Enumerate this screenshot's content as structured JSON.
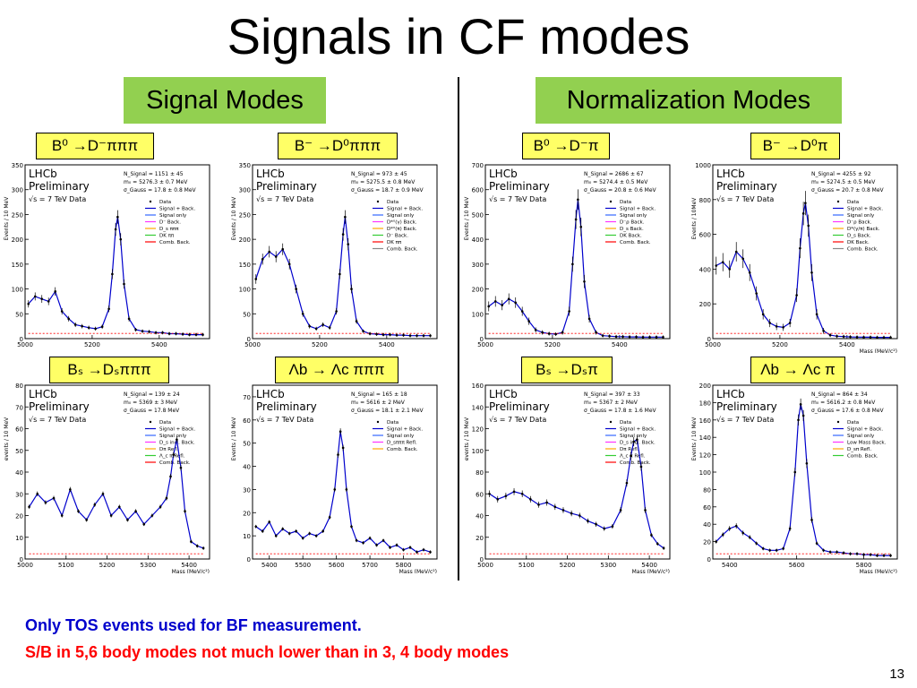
{
  "slide": {
    "title": "Signals in CF modes",
    "signal_modes_label": "Signal Modes",
    "normalization_modes_label": "Normalization Modes",
    "note_1": "Only TOS events used for BF measurement.",
    "note_2": "S/B in 5,6 body modes not much lower than in 3, 4 body modes",
    "page_number": "13"
  },
  "colors": {
    "label_green": "#92d050",
    "label_yellow": "#ffff66",
    "note_blue": "#0000cc",
    "note_red": "#ff0000"
  },
  "chart_data": [
    {
      "type": "line",
      "mode_label": "B⁰ →D⁻πππ",
      "info": [
        "LHCb",
        "Preliminary",
        "√s = 7 TeV Data"
      ],
      "ylabel": "Events / 10 MeV",
      "xlabel": "",
      "ylim": [
        0,
        350
      ],
      "xlim": [
        5000,
        5550
      ],
      "yticks": [
        0,
        50,
        100,
        150,
        200,
        250,
        300,
        350
      ],
      "xticks": [
        5000,
        5200,
        5400
      ],
      "stats": [
        "N_Signal = 1151 ± 45",
        "m₀ = 5276.3 ± 0.7 MeV",
        "σ_Gauss = 17.8 ± 0.8 MeV"
      ],
      "legend": [
        "Data",
        "Signal + Back.",
        "Signal only",
        "D⁻ Back.",
        "D_s πππ",
        "DK ππ",
        "Comb. Back."
      ],
      "x": [
        5010,
        5030,
        5050,
        5070,
        5090,
        5110,
        5130,
        5150,
        5170,
        5190,
        5210,
        5230,
        5250,
        5260,
        5270,
        5276,
        5285,
        5295,
        5310,
        5330,
        5350,
        5370,
        5390,
        5410,
        5430,
        5450,
        5470,
        5490,
        5510,
        5530
      ],
      "y": [
        70,
        85,
        80,
        75,
        95,
        55,
        40,
        28,
        25,
        22,
        20,
        24,
        60,
        130,
        220,
        245,
        200,
        110,
        40,
        18,
        15,
        14,
        12,
        12,
        10,
        10,
        9,
        8,
        8,
        8
      ]
    },
    {
      "type": "line",
      "mode_label": "B⁻ →D⁰πππ",
      "info": [
        "LHCb",
        "Preliminary",
        "√s = 7 TeV Data"
      ],
      "ylabel": "Events / 10 MeV",
      "xlabel": "",
      "ylim": [
        0,
        350
      ],
      "xlim": [
        5000,
        5550
      ],
      "yticks": [
        0,
        50,
        100,
        150,
        200,
        250,
        300,
        350
      ],
      "xticks": [
        5000,
        5200,
        5400
      ],
      "stats": [
        "N_Signal = 973 ± 45",
        "m₀ = 5275.5 ± 0.8 MeV",
        "σ_Gauss = 18.7 ± 0.9 MeV"
      ],
      "legend": [
        "Data",
        "Signal + Back.",
        "Signal only",
        "D*⁰(γ) Back.",
        "D*⁰(π) Back.",
        "D⁻ Back.",
        "DK ππ",
        "Comb. Back."
      ],
      "x": [
        5010,
        5030,
        5050,
        5070,
        5090,
        5110,
        5130,
        5150,
        5170,
        5190,
        5210,
        5230,
        5250,
        5260,
        5270,
        5276,
        5285,
        5295,
        5310,
        5330,
        5350,
        5370,
        5390,
        5410,
        5430,
        5450,
        5470,
        5490,
        5510,
        5530
      ],
      "y": [
        120,
        160,
        175,
        165,
        180,
        150,
        100,
        50,
        25,
        20,
        28,
        22,
        55,
        130,
        210,
        245,
        190,
        100,
        35,
        15,
        10,
        9,
        8,
        8,
        7,
        7,
        6,
        6,
        6,
        6
      ]
    },
    {
      "type": "line",
      "mode_label": "B⁰ →D⁻π",
      "info": [
        "LHCb",
        "Preliminary",
        "√s = 7 TeV Data"
      ],
      "ylabel": "Events / 10 MeV",
      "xlabel": "",
      "ylim": [
        0,
        700
      ],
      "xlim": [
        5000,
        5550
      ],
      "yticks": [
        0,
        100,
        200,
        300,
        400,
        500,
        600,
        700
      ],
      "xticks": [
        5000,
        5200,
        5400
      ],
      "stats": [
        "N_Signal = 2686 ± 67",
        "m₀ = 5274.4 ± 0.5 MeV",
        "σ_Gauss = 20.8 ± 0.6 MeV"
      ],
      "legend": [
        "Data",
        "Signal + Back.",
        "Signal only",
        "D⁻ρ Back.",
        "D_s Back.",
        "DK Back.",
        "Comb. Back."
      ],
      "x": [
        5010,
        5030,
        5050,
        5070,
        5090,
        5110,
        5130,
        5150,
        5170,
        5190,
        5210,
        5230,
        5250,
        5260,
        5270,
        5276,
        5285,
        5295,
        5310,
        5330,
        5350,
        5370,
        5390,
        5410,
        5430,
        5450,
        5470,
        5490,
        5510,
        5530
      ],
      "y": [
        130,
        150,
        135,
        160,
        145,
        110,
        70,
        35,
        25,
        20,
        18,
        25,
        110,
        300,
        480,
        560,
        450,
        230,
        80,
        25,
        12,
        10,
        8,
        8,
        7,
        7,
        6,
        6,
        6,
        6
      ]
    },
    {
      "type": "line",
      "mode_label": "B⁻ →D⁰π",
      "info": [
        "LHCb",
        "Preliminary",
        "√s = 7 TeV Data"
      ],
      "ylabel": "Events / 10MeV",
      "xlabel": "Mass (MeV/c²)",
      "ylim": [
        0,
        1000
      ],
      "xlim": [
        5000,
        5550
      ],
      "yticks": [
        0,
        200,
        400,
        600,
        800,
        1000
      ],
      "xticks": [
        5000,
        5200,
        5400
      ],
      "stats": [
        "N_Signal = 4255 ± 92",
        "m₀ = 5274.5 ± 0.5 MeV",
        "σ_Gauss = 20.7 ± 0.8 MeV"
      ],
      "legend": [
        "Data",
        "Signal + Back.",
        "Signal only",
        "D⁻ρ Back.",
        "D*(γ/π) Back.",
        "D_s Back.",
        "DK Back.",
        "Comb. Back."
      ],
      "x": [
        5010,
        5030,
        5050,
        5070,
        5090,
        5110,
        5130,
        5150,
        5170,
        5190,
        5210,
        5230,
        5250,
        5260,
        5270,
        5276,
        5285,
        5295,
        5310,
        5330,
        5350,
        5370,
        5390,
        5410,
        5430,
        5450,
        5470,
        5490,
        5510,
        5530
      ],
      "y": [
        420,
        440,
        400,
        500,
        460,
        380,
        260,
        140,
        90,
        70,
        65,
        90,
        250,
        520,
        720,
        780,
        650,
        380,
        140,
        45,
        20,
        14,
        12,
        10,
        9,
        8,
        8,
        7,
        7,
        7
      ]
    },
    {
      "type": "line",
      "mode_label": "Bₛ →Dₛπππ",
      "info": [
        "LHCb",
        "Preliminary",
        "√s = 7 TeV Data"
      ],
      "ylabel": "events / 10 MeV",
      "xlabel": "Mass (MeV/c²)",
      "ylim": [
        0,
        80
      ],
      "xlim": [
        5000,
        5450
      ],
      "yticks": [
        0,
        10,
        20,
        30,
        40,
        50,
        60,
        70,
        80
      ],
      "xticks": [
        5000,
        5100,
        5200,
        5300,
        5400
      ],
      "stats": [
        "N_Signal = 139 ± 24",
        "m₀ = 5369 ± 3 MeV",
        "σ_Gauss = 17.8 MeV"
      ],
      "legend": [
        "Data",
        "Signal + Back.",
        "Signal only",
        "D_s incl. Back.",
        "Dπ Refl.",
        "Λ_c π Refl.",
        "Comb. Back."
      ],
      "x": [
        5010,
        5030,
        5050,
        5070,
        5090,
        5110,
        5130,
        5150,
        5170,
        5190,
        5210,
        5230,
        5250,
        5270,
        5290,
        5310,
        5330,
        5345,
        5355,
        5362,
        5370,
        5380,
        5390,
        5405,
        5420,
        5435
      ],
      "y": [
        24,
        30,
        26,
        28,
        20,
        32,
        22,
        18,
        25,
        30,
        20,
        24,
        18,
        22,
        16,
        20,
        24,
        28,
        38,
        48,
        55,
        42,
        22,
        8,
        6,
        5
      ]
    },
    {
      "type": "line",
      "mode_label": "Λb → Λc πππ",
      "info": [
        "LHCb",
        "Preliminary",
        "√s = 7 TeV Data"
      ],
      "ylabel": "Events / 10 MeV",
      "xlabel": "Mass (MeV/c²)",
      "ylim": [
        0,
        75
      ],
      "xlim": [
        5350,
        5900
      ],
      "yticks": [
        0,
        10,
        20,
        30,
        40,
        50,
        60,
        70
      ],
      "xticks": [
        5400,
        5500,
        5600,
        5700,
        5800
      ],
      "stats": [
        "N_Signal = 165 ± 18",
        "m₀ = 5616 ± 2 MeV",
        "σ_Gauss = 18.1 ± 2.1 MeV"
      ],
      "legend": [
        "Data",
        "Signal + Back.",
        "Signal only",
        "D_sπππ Refl.",
        "Comb. Back."
      ],
      "x": [
        5360,
        5380,
        5400,
        5420,
        5440,
        5460,
        5480,
        5500,
        5520,
        5540,
        5560,
        5580,
        5595,
        5605,
        5612,
        5620,
        5630,
        5645,
        5660,
        5680,
        5700,
        5720,
        5740,
        5760,
        5780,
        5800,
        5820,
        5840,
        5860,
        5880
      ],
      "y": [
        14,
        12,
        16,
        10,
        13,
        11,
        12,
        9,
        11,
        10,
        12,
        18,
        30,
        45,
        55,
        48,
        30,
        14,
        8,
        7,
        9,
        6,
        8,
        5,
        6,
        4,
        5,
        3,
        4,
        3
      ]
    },
    {
      "type": "line",
      "mode_label": "Bₛ →Dₛπ",
      "info": [
        "LHCb",
        "Preliminary",
        "√s = 7 TeV Data"
      ],
      "ylabel": "events / 10 MeV",
      "xlabel": "Mass (MeV/c²)",
      "ylim": [
        0,
        160
      ],
      "xlim": [
        5000,
        5450
      ],
      "yticks": [
        0,
        20,
        40,
        60,
        80,
        100,
        120,
        140,
        160
      ],
      "xticks": [
        5000,
        5100,
        5200,
        5300,
        5400
      ],
      "stats": [
        "N_Signal = 397 ± 33",
        "m₀ = 5367 ± 2 MeV",
        "σ_Gauss = 17.8 ± 1.6 MeV"
      ],
      "legend": [
        "Data",
        "Signal + Back.",
        "Signal only",
        "D_s incl. Back.",
        "Dπ Refl.",
        "Λ_c π Refl.",
        "Comb. Back."
      ],
      "x": [
        5010,
        5030,
        5050,
        5070,
        5090,
        5110,
        5130,
        5150,
        5170,
        5190,
        5210,
        5230,
        5250,
        5270,
        5290,
        5310,
        5330,
        5345,
        5355,
        5362,
        5370,
        5380,
        5390,
        5405,
        5420,
        5435
      ],
      "y": [
        60,
        55,
        58,
        62,
        60,
        55,
        50,
        52,
        48,
        45,
        42,
        40,
        35,
        32,
        28,
        30,
        45,
        70,
        95,
        108,
        110,
        85,
        45,
        22,
        14,
        10
      ]
    },
    {
      "type": "line",
      "mode_label": "Λb → Λc π",
      "info": [
        "LHCb",
        "Preliminary",
        "√s = 7 TeV Data"
      ],
      "ylabel": "Events / 10 MeV",
      "xlabel": "Mass (MeV/c²)",
      "ylim": [
        0,
        200
      ],
      "xlim": [
        5350,
        5900
      ],
      "yticks": [
        0,
        20,
        40,
        60,
        80,
        100,
        120,
        140,
        160,
        180,
        200
      ],
      "xticks": [
        5400,
        5600,
        5800
      ],
      "stats": [
        "N_Signal = 864 ± 34",
        "m₀ = 5616.2 ± 0.8 MeV",
        "σ_Gauss = 17.6 ± 0.8 MeV"
      ],
      "legend": [
        "Data",
        "Signal + Back.",
        "Signal only",
        "Low Mass Back.",
        "D_sπ Refl.",
        "Comb. Back."
      ],
      "x": [
        5360,
        5380,
        5400,
        5420,
        5440,
        5460,
        5480,
        5500,
        5520,
        5540,
        5560,
        5580,
        5595,
        5605,
        5612,
        5620,
        5630,
        5645,
        5660,
        5680,
        5700,
        5720,
        5740,
        5760,
        5780,
        5800,
        5820,
        5840,
        5860,
        5880
      ],
      "y": [
        20,
        28,
        35,
        38,
        30,
        25,
        18,
        12,
        10,
        10,
        12,
        35,
        100,
        160,
        178,
        165,
        110,
        45,
        18,
        10,
        8,
        8,
        7,
        6,
        6,
        5,
        5,
        4,
        4,
        4
      ]
    }
  ]
}
